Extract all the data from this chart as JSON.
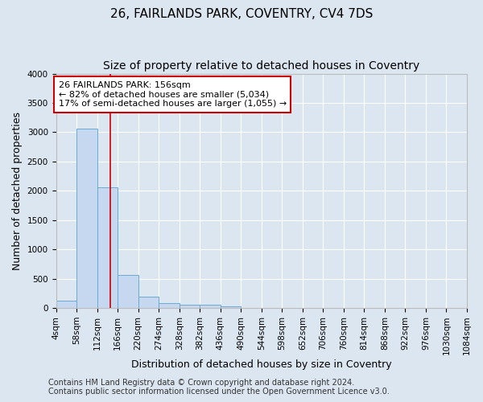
{
  "title": "26, FAIRLANDS PARK, COVENTRY, CV4 7DS",
  "subtitle": "Size of property relative to detached houses in Coventry",
  "xlabel": "Distribution of detached houses by size in Coventry",
  "ylabel": "Number of detached properties",
  "bin_labels": [
    "4sqm",
    "58sqm",
    "112sqm",
    "166sqm",
    "220sqm",
    "274sqm",
    "328sqm",
    "382sqm",
    "436sqm",
    "490sqm",
    "544sqm",
    "598sqm",
    "652sqm",
    "706sqm",
    "760sqm",
    "814sqm",
    "868sqm",
    "922sqm",
    "976sqm",
    "1030sqm",
    "1084sqm"
  ],
  "bar_heights": [
    130,
    3060,
    2060,
    560,
    200,
    80,
    60,
    50,
    30,
    0,
    0,
    0,
    0,
    0,
    0,
    0,
    0,
    0,
    0,
    0
  ],
  "bar_color": "#c5d8f0",
  "bar_edgecolor": "#6aaad4",
  "vline_x": 2.65,
  "vline_color": "#cc0000",
  "ylim": [
    0,
    4000
  ],
  "yticks": [
    0,
    500,
    1000,
    1500,
    2000,
    2500,
    3000,
    3500,
    4000
  ],
  "annotation_text": "26 FAIRLANDS PARK: 156sqm\n← 82% of detached houses are smaller (5,034)\n17% of semi-detached houses are larger (1,055) →",
  "annotation_box_color": "#ffffff",
  "annotation_box_edgecolor": "#cc0000",
  "footer_line1": "Contains HM Land Registry data © Crown copyright and database right 2024.",
  "footer_line2": "Contains public sector information licensed under the Open Government Licence v3.0.",
  "background_color": "#dce6f0",
  "plot_background": "#dce6f0",
  "grid_color": "#ffffff",
  "title_fontsize": 11,
  "subtitle_fontsize": 10,
  "axis_label_fontsize": 9,
  "tick_fontsize": 7.5,
  "annotation_fontsize": 8,
  "footer_fontsize": 7
}
